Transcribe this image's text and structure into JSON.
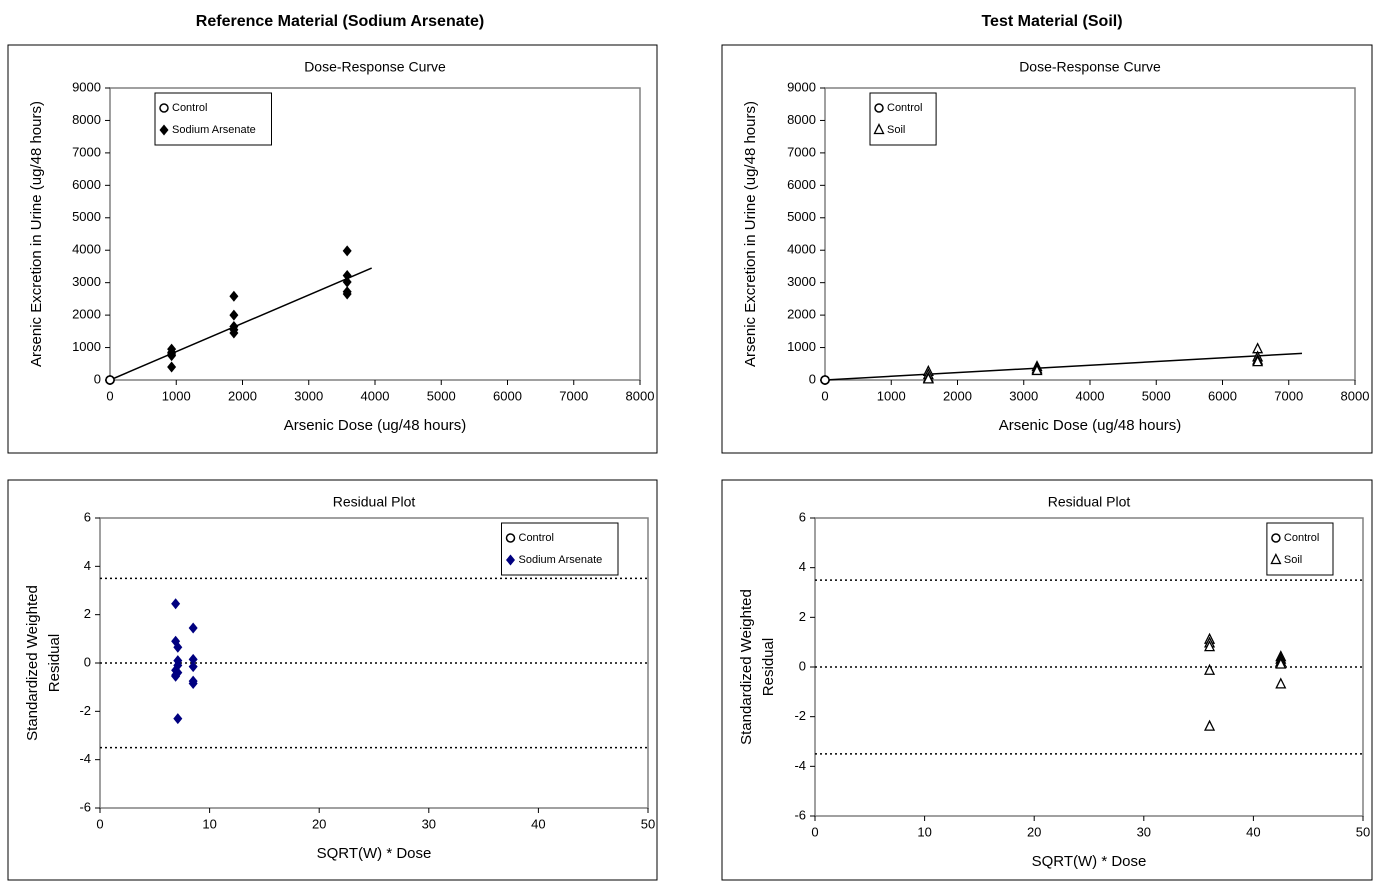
{
  "headers": [
    "Reference Material (Sodium Arsenate)",
    "Test Material (Soil)"
  ],
  "chart_data": [
    {
      "type": "scatter",
      "title": "Dose-Response Curve",
      "xlabel": "Arsenic Dose (ug/48 hours)",
      "ylabel": [
        "Arsenic Excretion in Urine (ug/48 hours)"
      ],
      "xlim": [
        0,
        8000
      ],
      "ylim": [
        0,
        9000
      ],
      "xticks": [
        0,
        1000,
        2000,
        3000,
        4000,
        5000,
        6000,
        7000,
        8000
      ],
      "yticks": [
        0,
        1000,
        2000,
        3000,
        4000,
        5000,
        6000,
        7000,
        8000,
        9000
      ],
      "legend": "upper left",
      "series": [
        {
          "name": "Control",
          "color": "#000000",
          "marker": "circle-open",
          "x": [
            0,
            0,
            0,
            0
          ],
          "values": [
            0,
            0,
            0,
            0
          ]
        },
        {
          "name": "Sodium Arsenate",
          "color": "#000000",
          "marker": "diamond",
          "x": [
            930,
            930,
            930,
            930,
            930,
            1870,
            1870,
            1870,
            1870,
            1870,
            3580,
            3580,
            3580,
            3580,
            3580
          ],
          "values": [
            950,
            850,
            800,
            750,
            400,
            2580,
            2000,
            1650,
            1550,
            1450,
            3980,
            3220,
            3020,
            2720,
            2650
          ]
        }
      ],
      "fit_line": {
        "color": "#000000",
        "x": [
          0,
          3950
        ],
        "values": [
          0,
          3450
        ]
      }
    },
    {
      "type": "scatter",
      "title": "Dose-Response Curve",
      "xlabel": "Arsenic Dose (ug/48 hours)",
      "ylabel": [
        "Arsenic Excretion in Urine (ug/48 hours)"
      ],
      "xlim": [
        0,
        8000
      ],
      "ylim": [
        0,
        9000
      ],
      "xticks": [
        0,
        1000,
        2000,
        3000,
        4000,
        5000,
        6000,
        7000,
        8000
      ],
      "yticks": [
        0,
        1000,
        2000,
        3000,
        4000,
        5000,
        6000,
        7000,
        8000,
        9000
      ],
      "legend": "upper left",
      "series": [
        {
          "name": "Control",
          "color": "#000000",
          "marker": "circle-open",
          "x": [
            0,
            0,
            0,
            0
          ],
          "values": [
            0,
            0,
            0,
            0
          ]
        },
        {
          "name": "Soil",
          "color": "#000000",
          "marker": "triangle-open",
          "x": [
            1560,
            1560,
            1560,
            1560,
            3200,
            3200,
            3200,
            6530,
            6530,
            6530,
            6530
          ],
          "values": [
            250,
            150,
            50,
            20,
            400,
            330,
            280,
            950,
            700,
            600,
            550
          ]
        }
      ],
      "fit_line": {
        "color": "#000000",
        "x": [
          0,
          7200
        ],
        "values": [
          0,
          820
        ]
      }
    },
    {
      "type": "scatter",
      "title": "Residual Plot",
      "xlabel": "SQRT(W) * Dose",
      "ylabel": [
        "Standardized Weighted",
        "Residual"
      ],
      "xlim": [
        0,
        50
      ],
      "ylim": [
        -6,
        6
      ],
      "xticks": [
        0,
        10,
        20,
        30,
        40,
        50
      ],
      "yticks": [
        -6,
        -4,
        -2,
        0,
        2,
        4,
        6
      ],
      "legend": "upper right",
      "hlines": [
        3.5,
        0,
        -3.5
      ],
      "series": [
        {
          "name": "Control",
          "color": "#000000",
          "marker": "circle-open",
          "x": [],
          "values": []
        },
        {
          "name": "Sodium Arsenate",
          "color": "#000080",
          "marker": "diamond",
          "x": [
            6.9,
            6.9,
            6.9,
            6.9,
            6.9,
            7.1,
            7.1,
            7.1,
            7.1,
            7.1,
            8.5,
            8.5,
            8.5,
            8.5,
            8.5
          ],
          "values": [
            2.45,
            0.9,
            -0.3,
            -0.5,
            -0.55,
            0.65,
            0.1,
            -0.1,
            -2.3,
            -0.4,
            1.45,
            0.15,
            -0.15,
            -0.75,
            -0.85
          ]
        }
      ]
    },
    {
      "type": "scatter",
      "title": "Residual Plot",
      "xlabel": "SQRT(W) * Dose",
      "ylabel": [
        "Standardized Weighted",
        "Residual"
      ],
      "xlim": [
        0,
        50
      ],
      "ylim": [
        -6,
        6
      ],
      "xticks": [
        0,
        10,
        20,
        30,
        40,
        50
      ],
      "yticks": [
        -6,
        -4,
        -2,
        0,
        2,
        4,
        6
      ],
      "legend": "upper right",
      "hlines": [
        3.5,
        0,
        -3.5
      ],
      "series": [
        {
          "name": "Control",
          "color": "#000000",
          "marker": "circle-open",
          "x": [],
          "values": []
        },
        {
          "name": "Soil",
          "color": "#000000",
          "marker": "triangle-open",
          "x": [
            36,
            36,
            36,
            36,
            36,
            42.5,
            42.5,
            42.5,
            42.5,
            42.5
          ],
          "values": [
            1.1,
            0.95,
            0.8,
            -0.15,
            -2.4,
            0.4,
            0.3,
            0.2,
            0.1,
            -0.7
          ]
        }
      ]
    }
  ]
}
